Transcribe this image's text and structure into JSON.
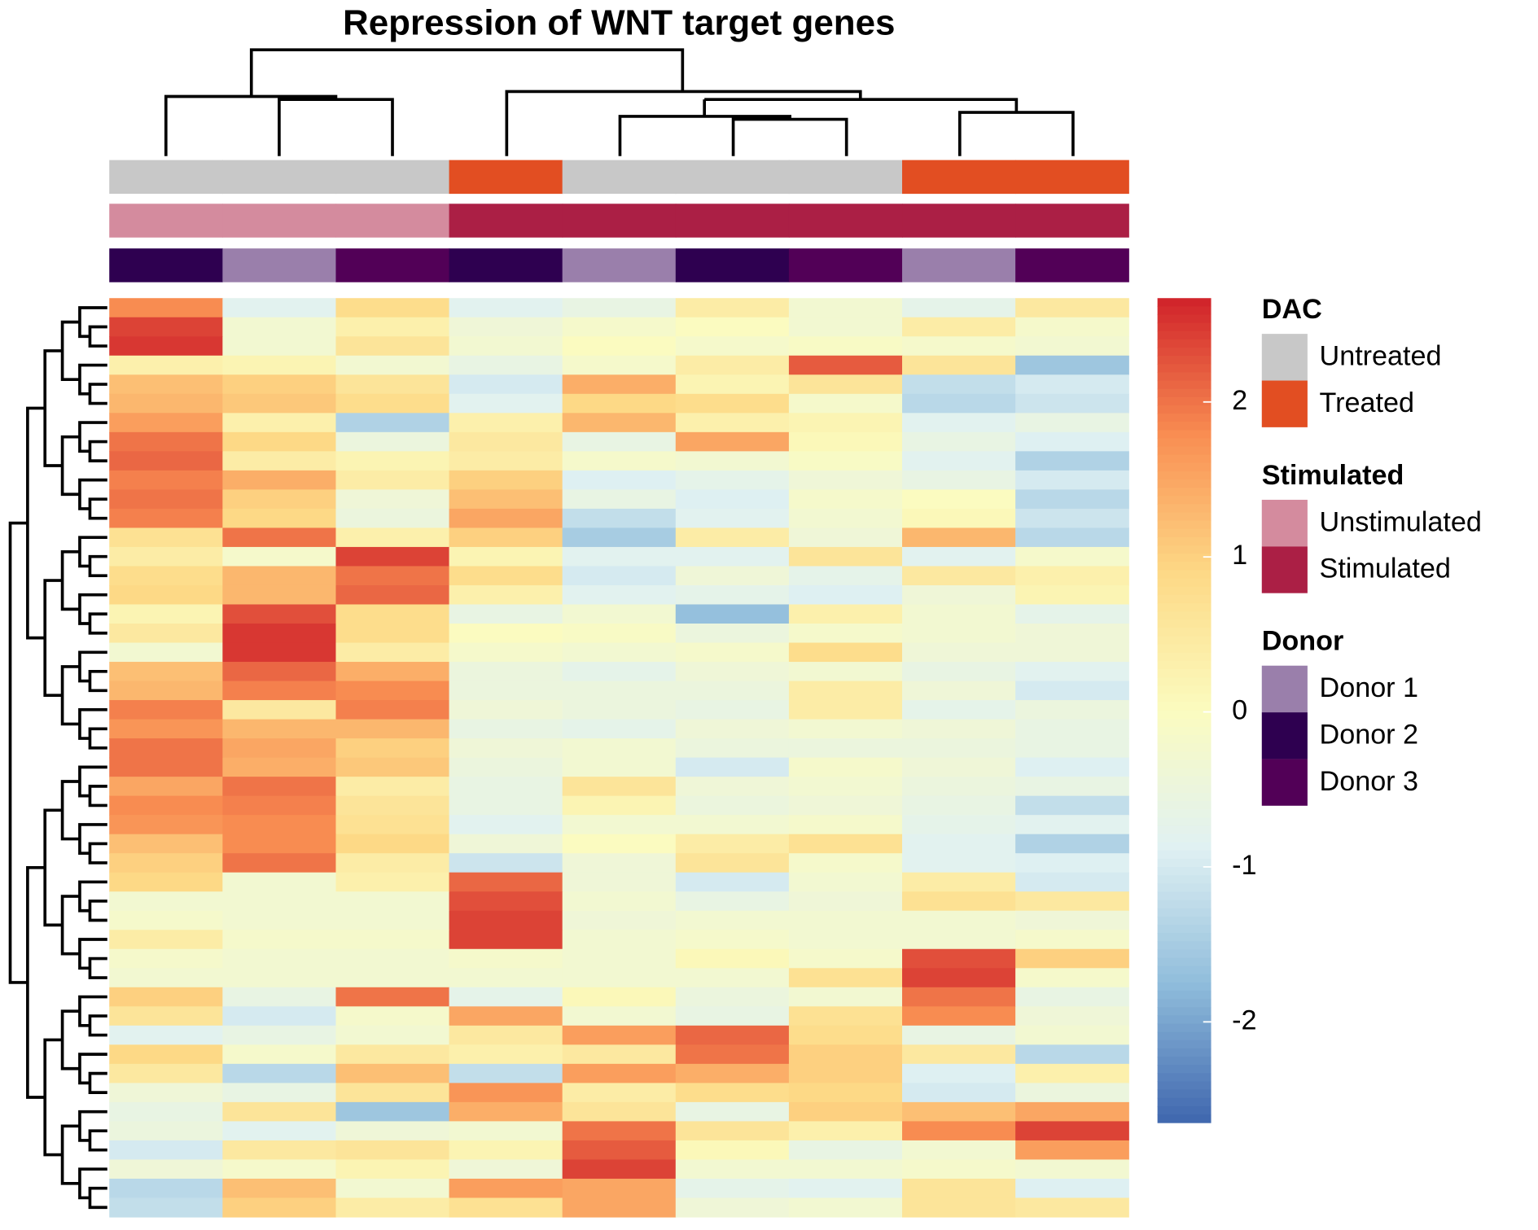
{
  "chart_data": {
    "type": "heatmap",
    "title": "Repression of WNT target genes",
    "annotations": [
      {
        "name": "DAC",
        "levels": [
          {
            "label": "Untreated",
            "color": "#c8c8c8"
          },
          {
            "label": "Treated",
            "color": "#e24e22"
          }
        ],
        "values": [
          "Untreated",
          "Untreated",
          "Untreated",
          "Treated",
          "Untreated",
          "Untreated",
          "Untreated",
          "Treated",
          "Treated"
        ]
      },
      {
        "name": "Stimulated",
        "levels": [
          {
            "label": "Unstimulated",
            "color": "#d48b9e"
          },
          {
            "label": "Stimulated",
            "color": "#ab1f45"
          }
        ],
        "values": [
          "Unstimulated",
          "Unstimulated",
          "Unstimulated",
          "Stimulated",
          "Stimulated",
          "Stimulated",
          "Stimulated",
          "Stimulated",
          "Stimulated"
        ]
      },
      {
        "name": "Donor",
        "levels": [
          {
            "label": "Donor 1",
            "color": "#9a7fab"
          },
          {
            "label": "Donor 2",
            "color": "#2e0050"
          },
          {
            "label": "Donor 3",
            "color": "#520057"
          }
        ],
        "values": [
          "Donor 2",
          "Donor 1",
          "Donor 3",
          "Donor 2",
          "Donor 1",
          "Donor 2",
          "Donor 3",
          "Donor 1",
          "Donor 3"
        ]
      }
    ],
    "zlim": [
      -2.65,
      2.67
    ],
    "zticks": [
      2,
      1,
      0,
      -1,
      -2
    ],
    "colors": [
      "#3f66ae",
      "#8fbcdb",
      "#e0f1f3",
      "#fbfbbf",
      "#fdd986",
      "#f98e52",
      "#d0222a"
    ],
    "values": [
      [
        1.8,
        -0.8,
        0.8,
        -0.8,
        -0.6,
        0.4,
        -0.3,
        -0.7,
        0.5
      ],
      [
        2.4,
        -0.3,
        0.3,
        -0.4,
        -0.2,
        0,
        -0.3,
        0.4,
        -0.2
      ],
      [
        2.5,
        -0.3,
        0.6,
        -0.3,
        0,
        -0.2,
        -0.1,
        -0.2,
        -0.3
      ],
      [
        0.3,
        0.2,
        -0.3,
        -0.6,
        -0.2,
        0.4,
        2.2,
        0.6,
        -1.6
      ],
      [
        1.2,
        1.0,
        0.6,
        -1.0,
        1.4,
        0.2,
        0.6,
        -1.2,
        -1.0
      ],
      [
        1.3,
        1.1,
        0.8,
        -0.8,
        0.9,
        0.8,
        -0.2,
        -1.3,
        -1.1
      ],
      [
        1.6,
        0.3,
        -1.4,
        0.3,
        1.3,
        0.3,
        0.2,
        -0.8,
        -0.6
      ],
      [
        2.0,
        0.9,
        -0.5,
        0.5,
        -0.6,
        1.5,
        0.1,
        -0.6,
        -0.9
      ],
      [
        2.1,
        0.4,
        0.2,
        0.4,
        -0.2,
        -0.3,
        -0.1,
        -0.8,
        -1.4
      ],
      [
        1.9,
        1.4,
        0.4,
        1.0,
        -0.9,
        -0.7,
        -0.4,
        -0.6,
        -1.0
      ],
      [
        2.0,
        1.0,
        -0.4,
        1.2,
        -0.6,
        -0.9,
        -0.2,
        0,
        -1.3
      ],
      [
        1.9,
        0.9,
        -0.5,
        1.5,
        -1.2,
        -0.8,
        -0.3,
        0.1,
        -1.1
      ],
      [
        0.7,
        2.0,
        0.3,
        1.0,
        -1.5,
        0.4,
        -0.4,
        1.3,
        -1.3
      ],
      [
        0.4,
        -0.2,
        2.4,
        0.2,
        -0.8,
        -0.8,
        0.6,
        -0.8,
        -0.2
      ],
      [
        0.8,
        1.3,
        2.0,
        0.8,
        -1.0,
        -0.4,
        -0.7,
        0.5,
        0.3
      ],
      [
        0.9,
        1.3,
        2.1,
        0.3,
        -0.8,
        -0.7,
        -0.9,
        -0.4,
        0.2
      ],
      [
        0.2,
        2.3,
        0.8,
        -0.6,
        -0.3,
        -1.7,
        0.3,
        -0.3,
        -0.7
      ],
      [
        0.5,
        2.5,
        0.8,
        0,
        -0.1,
        -0.5,
        -0.2,
        -0.3,
        -0.4
      ],
      [
        -0.3,
        2.5,
        0.4,
        -0.2,
        -0.3,
        -0.2,
        0.8,
        -0.4,
        -0.4
      ],
      [
        1.2,
        2.1,
        1.4,
        -0.5,
        -0.7,
        -0.4,
        -0.3,
        -0.6,
        -0.8
      ],
      [
        1.3,
        1.9,
        1.8,
        -0.5,
        -0.5,
        -0.5,
        0.4,
        -0.4,
        -1.0
      ],
      [
        1.9,
        0.5,
        1.9,
        -0.4,
        -0.5,
        -0.6,
        0.4,
        -0.7,
        -0.5
      ],
      [
        1.7,
        1.3,
        1.3,
        -0.6,
        -0.7,
        -0.4,
        -0.3,
        -0.4,
        -0.6
      ],
      [
        2.0,
        1.5,
        1.0,
        -0.4,
        -0.3,
        -0.5,
        -0.5,
        -0.5,
        -0.6
      ],
      [
        2.0,
        1.4,
        1.1,
        -0.5,
        -0.3,
        -1.0,
        -0.2,
        -0.4,
        -0.9
      ],
      [
        1.5,
        2.0,
        0.4,
        -0.6,
        0.6,
        -0.4,
        -0.3,
        -0.5,
        -0.6
      ],
      [
        1.8,
        1.9,
        0.6,
        -0.6,
        0.2,
        -0.5,
        -0.4,
        -0.6,
        -1.2
      ],
      [
        1.7,
        1.8,
        0.7,
        -0.8,
        -0.3,
        -0.3,
        -0.2,
        -0.7,
        -0.8
      ],
      [
        1.2,
        1.8,
        0.9,
        -0.4,
        0,
        0.4,
        0.7,
        -0.8,
        -1.4
      ],
      [
        1.0,
        2.0,
        0.4,
        -1.1,
        -0.4,
        0.6,
        -0.2,
        -0.8,
        -0.9
      ],
      [
        0.9,
        -0.3,
        0.3,
        2.1,
        -0.4,
        -1.0,
        -0.3,
        0.4,
        -1.0
      ],
      [
        -0.3,
        -0.3,
        -0.3,
        2.3,
        -0.3,
        -0.6,
        -0.4,
        0.7,
        0.5
      ],
      [
        -0.2,
        -0.3,
        -0.3,
        2.4,
        -0.4,
        -0.3,
        -0.3,
        -0.3,
        -0.4
      ],
      [
        0.4,
        -0.2,
        -0.2,
        2.4,
        -0.3,
        -0.2,
        -0.3,
        -0.3,
        -0.2
      ],
      [
        -0.2,
        -0.3,
        -0.3,
        -0.2,
        -0.3,
        0.1,
        -0.2,
        2.3,
        1.0
      ],
      [
        -0.3,
        -0.3,
        -0.3,
        -0.3,
        -0.3,
        -0.3,
        0.7,
        2.4,
        -0.2
      ],
      [
        1.0,
        -0.6,
        2.0,
        -0.7,
        0.1,
        -0.5,
        -0.3,
        2.0,
        -0.6
      ],
      [
        0.6,
        -1.0,
        -0.2,
        1.5,
        -0.3,
        -0.6,
        0.7,
        1.8,
        -0.4
      ],
      [
        -0.8,
        -0.6,
        -0.3,
        0.5,
        1.6,
        2.1,
        0.8,
        -0.6,
        -0.3
      ],
      [
        0.9,
        -0.2,
        0.5,
        0.3,
        0.5,
        2.0,
        1.0,
        0.5,
        -1.3
      ],
      [
        0.5,
        -1.3,
        1.2,
        -1.2,
        1.6,
        1.4,
        1.0,
        -0.9,
        0.3
      ],
      [
        -0.4,
        -0.6,
        0.6,
        1.7,
        0.4,
        0.8,
        0.9,
        -1.0,
        -0.5
      ],
      [
        -0.6,
        0.6,
        -1.6,
        1.4,
        0.6,
        -0.6,
        1.0,
        1.2,
        1.5
      ],
      [
        -0.5,
        -0.8,
        -0.4,
        -0.3,
        2.0,
        0.6,
        0.3,
        1.8,
        2.4
      ],
      [
        -1.0,
        0.5,
        0.6,
        0.2,
        2.2,
        0.1,
        -0.6,
        -0.3,
        1.6
      ],
      [
        -0.4,
        -0.2,
        0.2,
        -0.4,
        2.4,
        -0.3,
        -0.3,
        -0.2,
        -0.3
      ],
      [
        -1.3,
        1.2,
        -0.3,
        1.6,
        1.5,
        -0.7,
        -0.8,
        0.6,
        -0.9
      ],
      [
        -1.2,
        1.0,
        0.4,
        0.7,
        1.5,
        -0.4,
        -0.3,
        0.6,
        0.5
      ]
    ]
  }
}
